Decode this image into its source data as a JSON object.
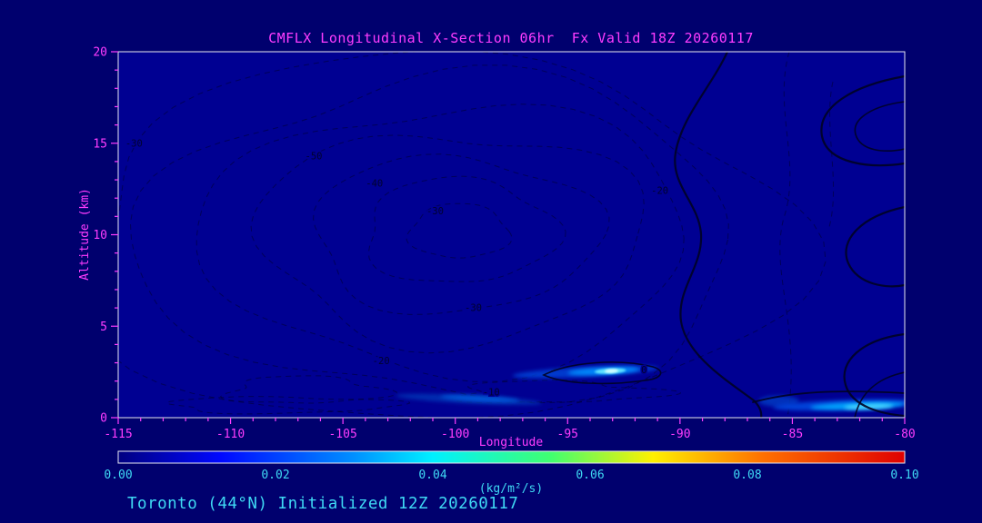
{
  "figure": {
    "footer": "Toronto (44°N) Initialized 12Z 20260117",
    "colors": {
      "background": "#00006e",
      "plot_background": "#000092",
      "axis_text": "#ff3cff",
      "cyan_text": "#3fd9f4",
      "frame": "#e9e9f2",
      "tick": "#ff3cff",
      "contour": "#000224"
    }
  },
  "chart_data": {
    "type": "heatmap",
    "title": "CMFLX Longitudinal X-Section 06hr  Fx Valid 18Z 20260117",
    "xlabel": "Longitude",
    "ylabel": "Altitude (km)",
    "xlim": [
      -115,
      -80
    ],
    "ylim": [
      0,
      20
    ],
    "x_ticks": [
      -115,
      -110,
      -105,
      -100,
      -95,
      -90,
      -85,
      -80
    ],
    "y_ticks": [
      0,
      5,
      10,
      15,
      20
    ],
    "grid": false,
    "colorbar": {
      "min": 0.0,
      "max": 0.1,
      "ticks": [
        "0.00",
        "0.02",
        "0.04",
        "0.06",
        "0.08",
        "0.10"
      ],
      "units": "(kg/m²/s)",
      "colormap": "jet",
      "stops": [
        [
          0.0,
          "#000080"
        ],
        [
          0.13,
          "#0008ff"
        ],
        [
          0.3,
          "#0090ff"
        ],
        [
          0.4,
          "#00f0ff"
        ],
        [
          0.55,
          "#40ff70"
        ],
        [
          0.68,
          "#fff000"
        ],
        [
          0.82,
          "#ff7000"
        ],
        [
          1.0,
          "#e00000"
        ]
      ]
    },
    "contour_labels": [
      {
        "value": -30,
        "lon": -114.3,
        "alt": 15.0
      },
      {
        "value": -50,
        "lon": -106.3,
        "alt": 14.3
      },
      {
        "value": -40,
        "lon": -103.6,
        "alt": 12.8
      },
      {
        "value": -30,
        "lon": -100.9,
        "alt": 11.3
      },
      {
        "value": -20,
        "lon": -90.9,
        "alt": 12.4
      },
      {
        "value": -30,
        "lon": -99.2,
        "alt": 6.0
      },
      {
        "value": -20,
        "lon": -103.3,
        "alt": 3.1
      },
      {
        "value": -10,
        "lon": -98.4,
        "alt": 1.4
      },
      {
        "value": 0,
        "lon": -91.6,
        "alt": 2.6
      }
    ],
    "features": [
      {
        "lon": -94.2,
        "alt": 2.5,
        "width_deg": 6.5,
        "height_km": 0.55,
        "color": "#0044d8",
        "opacity": 0.85,
        "tilt": -3
      },
      {
        "lon": -93.4,
        "alt": 2.55,
        "width_deg": 3.2,
        "height_km": 0.4,
        "color": "#0090ff",
        "opacity": 0.9,
        "tilt": -3
      },
      {
        "lon": -93.1,
        "alt": 2.55,
        "width_deg": 1.4,
        "height_km": 0.3,
        "color": "#66e8ff",
        "opacity": 0.95,
        "tilt": -3
      },
      {
        "lon": -93.05,
        "alt": 2.55,
        "width_deg": 0.6,
        "height_km": 0.22,
        "color": "#d8ffff",
        "opacity": 0.95,
        "tilt": -3
      },
      {
        "lon": -99.4,
        "alt": 1.0,
        "width_deg": 6.5,
        "height_km": 0.45,
        "color": "#0038b8",
        "opacity": 0.8,
        "tilt": 3
      },
      {
        "lon": -98.9,
        "alt": 1.05,
        "width_deg": 3.5,
        "height_km": 0.32,
        "color": "#0066e8",
        "opacity": 0.75,
        "tilt": 3
      },
      {
        "lon": -85.6,
        "alt": 0.9,
        "width_deg": 1.8,
        "height_km": 0.6,
        "color": "#0040c8",
        "opacity": 0.75,
        "tilt": 0
      },
      {
        "lon": -82.6,
        "alt": 0.7,
        "width_deg": 6.5,
        "height_km": 0.55,
        "color": "#0048e0",
        "opacity": 0.9,
        "tilt": -2
      },
      {
        "lon": -82.1,
        "alt": 0.65,
        "width_deg": 4.2,
        "height_km": 0.38,
        "color": "#00aaff",
        "opacity": 0.9,
        "tilt": -2
      },
      {
        "lon": -81.6,
        "alt": 0.6,
        "width_deg": 2.2,
        "height_km": 0.28,
        "color": "#55e0ff",
        "opacity": 0.9,
        "tilt": -2
      }
    ]
  }
}
